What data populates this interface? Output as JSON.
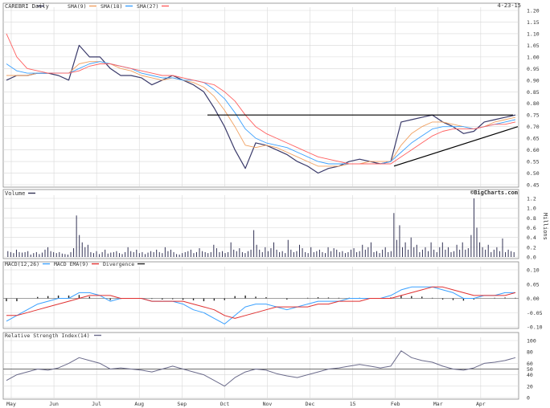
{
  "header": {
    "symbol_label": "CAREBRI Daily",
    "date": "4-23-15",
    "watermark": "©BigCharts.com"
  },
  "colors": {
    "price": "#3a3a6a",
    "sma9": "#f0a060",
    "sma18": "#3aa0ff",
    "sma27": "#ff6060",
    "macd": "#3aa0ff",
    "ema": "#e03030",
    "divergence": "#222222",
    "rsi": "#6a6a8a",
    "volume": "#333355",
    "grid": "#d8d8d8",
    "trendline": "#000000"
  },
  "chart_data": [
    {
      "type": "line",
      "panel": "price",
      "ylim": [
        0.45,
        1.2
      ],
      "yticks": [
        "1.20",
        "1.15",
        "1.10",
        "1.05",
        "1.00",
        "0.95",
        "0.90",
        "0.85",
        "0.80",
        "0.75",
        "0.70",
        "0.65",
        "0.60",
        "0.55",
        "0.50",
        "0.45"
      ],
      "legend": [
        {
          "name": "SMA(9)",
          "color": "#f0a060"
        },
        {
          "name": "SMA(18)",
          "color": "#3aa0ff"
        },
        {
          "name": "SMA(27)",
          "color": "#ff6060"
        }
      ],
      "series": [
        {
          "name": "price",
          "key": "price",
          "values": [
            0.9,
            0.92,
            0.92,
            0.93,
            0.93,
            0.92,
            0.9,
            1.05,
            1.0,
            1.0,
            0.95,
            0.92,
            0.92,
            0.91,
            0.88,
            0.9,
            0.92,
            0.9,
            0.88,
            0.85,
            0.78,
            0.7,
            0.6,
            0.52,
            0.63,
            0.62,
            0.6,
            0.58,
            0.55,
            0.53,
            0.5,
            0.52,
            0.53,
            0.55,
            0.56,
            0.55,
            0.54,
            0.55,
            0.72,
            0.73,
            0.74,
            0.75,
            0.72,
            0.7,
            0.67,
            0.68,
            0.72,
            0.73,
            0.74,
            0.75
          ]
        },
        {
          "name": "SMA(9)",
          "key": "sma9",
          "values": [
            0.92,
            0.92,
            0.92,
            0.93,
            0.93,
            0.93,
            0.93,
            0.97,
            0.98,
            0.98,
            0.97,
            0.95,
            0.94,
            0.92,
            0.91,
            0.9,
            0.91,
            0.9,
            0.89,
            0.87,
            0.83,
            0.77,
            0.7,
            0.62,
            0.61,
            0.62,
            0.61,
            0.59,
            0.57,
            0.55,
            0.53,
            0.53,
            0.53,
            0.54,
            0.54,
            0.55,
            0.55,
            0.55,
            0.62,
            0.67,
            0.7,
            0.72,
            0.72,
            0.71,
            0.7,
            0.69,
            0.7,
            0.72,
            0.73,
            0.74
          ]
        },
        {
          "name": "SMA(18)",
          "key": "sma18",
          "values": [
            0.97,
            0.94,
            0.93,
            0.93,
            0.93,
            0.93,
            0.93,
            0.95,
            0.97,
            0.98,
            0.97,
            0.96,
            0.95,
            0.93,
            0.92,
            0.91,
            0.91,
            0.9,
            0.9,
            0.89,
            0.86,
            0.82,
            0.76,
            0.69,
            0.65,
            0.63,
            0.62,
            0.61,
            0.59,
            0.57,
            0.55,
            0.54,
            0.54,
            0.54,
            0.54,
            0.54,
            0.54,
            0.55,
            0.59,
            0.63,
            0.66,
            0.69,
            0.7,
            0.7,
            0.7,
            0.69,
            0.7,
            0.71,
            0.72,
            0.73
          ]
        },
        {
          "name": "SMA(27)",
          "key": "sma27",
          "values": [
            1.1,
            1.0,
            0.95,
            0.94,
            0.93,
            0.93,
            0.93,
            0.94,
            0.96,
            0.97,
            0.97,
            0.96,
            0.95,
            0.94,
            0.93,
            0.92,
            0.92,
            0.91,
            0.9,
            0.89,
            0.88,
            0.85,
            0.81,
            0.75,
            0.7,
            0.67,
            0.65,
            0.63,
            0.61,
            0.59,
            0.57,
            0.56,
            0.55,
            0.54,
            0.54,
            0.54,
            0.54,
            0.54,
            0.57,
            0.6,
            0.63,
            0.66,
            0.68,
            0.69,
            0.69,
            0.69,
            0.7,
            0.71,
            0.71,
            0.72
          ]
        }
      ],
      "resistance": 0.75,
      "support_from": 0.53,
      "support_to": 0.7
    },
    {
      "type": "bar",
      "panel": "volume",
      "title": "Volume",
      "ylabel": "Millions",
      "ylim": [
        0,
        1.2
      ],
      "yticks": [
        "1.2",
        "1.0",
        "0.8",
        "0.6",
        "0.4",
        "0.2",
        "0.0"
      ],
      "values": [
        0.12,
        0.1,
        0.08,
        0.15,
        0.1,
        0.09,
        0.1,
        0.12,
        0.05,
        0.08,
        0.1,
        0.06,
        0.09,
        0.15,
        0.2,
        0.12,
        0.1,
        0.08,
        0.1,
        0.07,
        0.06,
        0.05,
        0.1,
        0.18,
        0.85,
        0.45,
        0.3,
        0.2,
        0.25,
        0.1,
        0.08,
        0.12,
        0.06,
        0.1,
        0.15,
        0.07,
        0.09,
        0.1,
        0.12,
        0.08,
        0.06,
        0.1,
        0.2,
        0.12,
        0.1,
        0.15,
        0.08,
        0.1,
        0.06,
        0.09,
        0.12,
        0.1,
        0.15,
        0.1,
        0.08,
        0.2,
        0.12,
        0.15,
        0.1,
        0.06,
        0.05,
        0.08,
        0.1,
        0.12,
        0.15,
        0.08,
        0.1,
        0.18,
        0.12,
        0.1,
        0.08,
        0.1,
        0.25,
        0.18,
        0.1,
        0.12,
        0.08,
        0.1,
        0.3,
        0.15,
        0.12,
        0.18,
        0.1,
        0.08,
        0.12,
        0.15,
        0.55,
        0.25,
        0.15,
        0.1,
        0.2,
        0.12,
        0.18,
        0.3,
        0.15,
        0.1,
        0.12,
        0.08,
        0.35,
        0.15,
        0.1,
        0.12,
        0.25,
        0.18,
        0.1,
        0.08,
        0.2,
        0.1,
        0.12,
        0.15,
        0.1,
        0.08,
        0.2,
        0.12,
        0.18,
        0.15,
        0.1,
        0.12,
        0.08,
        0.1,
        0.15,
        0.18,
        0.1,
        0.12,
        0.25,
        0.15,
        0.2,
        0.3,
        0.1,
        0.12,
        0.08,
        0.15,
        0.2,
        0.1,
        0.12,
        0.9,
        0.35,
        0.65,
        0.2,
        0.3,
        0.15,
        0.4,
        0.2,
        0.25,
        0.1,
        0.15,
        0.2,
        0.12,
        0.3,
        0.15,
        0.1,
        0.2,
        0.3,
        0.15,
        0.2,
        0.1,
        0.12,
        0.25,
        0.15,
        0.3,
        0.15,
        0.18,
        0.45,
        1.2,
        0.6,
        0.3,
        0.2,
        0.15,
        0.25,
        0.1,
        0.15,
        0.2,
        0.12,
        0.38,
        0.1,
        0.15,
        0.12,
        0.1
      ]
    },
    {
      "type": "line",
      "panel": "macd",
      "ylim": [
        -0.1,
        0.1
      ],
      "yticks": [
        "0.10",
        "0.05",
        "0.00",
        "-0.05",
        "-0.10"
      ],
      "legend": [
        {
          "name": "MACD(12,26)",
          "color": "#3aa0ff"
        },
        {
          "name": "MACD EMA(9)",
          "color": "#e03030"
        },
        {
          "name": "Divergence",
          "color": "#222222"
        }
      ],
      "series": [
        {
          "name": "MACD(12,26)",
          "key": "macd",
          "values": [
            -0.08,
            -0.06,
            -0.04,
            -0.02,
            -0.01,
            0.0,
            0.0,
            0.02,
            0.02,
            0.01,
            -0.01,
            0.0,
            0.0,
            0.0,
            -0.01,
            -0.01,
            -0.01,
            -0.02,
            -0.04,
            -0.05,
            -0.07,
            -0.09,
            -0.06,
            -0.03,
            -0.02,
            -0.02,
            -0.03,
            -0.04,
            -0.03,
            -0.02,
            -0.01,
            -0.01,
            -0.01,
            0.0,
            0.0,
            0.0,
            0.0,
            0.01,
            0.03,
            0.04,
            0.04,
            0.04,
            0.03,
            0.02,
            0.0,
            0.0,
            0.01,
            0.01,
            0.02,
            0.02
          ]
        },
        {
          "name": "MACD EMA(9)",
          "key": "ema",
          "values": [
            -0.06,
            -0.06,
            -0.05,
            -0.04,
            -0.03,
            -0.02,
            -0.01,
            0.0,
            0.01,
            0.01,
            0.01,
            0.0,
            0.0,
            0.0,
            -0.01,
            -0.01,
            -0.01,
            -0.01,
            -0.02,
            -0.03,
            -0.04,
            -0.06,
            -0.07,
            -0.06,
            -0.05,
            -0.04,
            -0.03,
            -0.03,
            -0.03,
            -0.03,
            -0.02,
            -0.02,
            -0.01,
            -0.01,
            -0.01,
            0.0,
            0.0,
            0.0,
            0.01,
            0.02,
            0.03,
            0.04,
            0.04,
            0.03,
            0.02,
            0.01,
            0.01,
            0.01,
            0.01,
            0.02
          ]
        },
        {
          "name": "Divergence",
          "key": "div",
          "values": [
            -0.01,
            -0.01,
            0.0,
            0.005,
            0.008,
            0.01,
            0.01,
            0.012,
            0.006,
            0.0,
            -0.006,
            -0.002,
            0.0,
            0.0,
            -0.002,
            -0.004,
            -0.003,
            -0.005,
            -0.007,
            -0.01,
            -0.008,
            -0.006,
            0.008,
            0.01,
            0.006,
            0.004,
            0.0,
            -0.004,
            0.0,
            0.002,
            0.004,
            0.003,
            0.002,
            0.002,
            0.002,
            0.0,
            0.0,
            0.003,
            0.01,
            0.008,
            0.006,
            0.002,
            -0.004,
            -0.006,
            -0.008,
            -0.004,
            0.0,
            0.002,
            0.003,
            0.002
          ]
        }
      ]
    },
    {
      "type": "line",
      "panel": "rsi",
      "ylim": [
        0,
        100
      ],
      "yticks": [
        "100",
        "80",
        "60",
        "50",
        "40",
        "20",
        "0"
      ],
      "legend": [
        {
          "name": "Relative Strength Index(14)",
          "color": "#6a6a8a"
        }
      ],
      "series": [
        {
          "name": "RSI",
          "key": "rsi",
          "values": [
            30,
            40,
            45,
            50,
            48,
            52,
            60,
            70,
            65,
            60,
            50,
            52,
            50,
            48,
            45,
            50,
            55,
            50,
            45,
            40,
            30,
            20,
            35,
            45,
            50,
            48,
            42,
            38,
            35,
            40,
            45,
            50,
            52,
            55,
            58,
            55,
            52,
            55,
            82,
            70,
            65,
            62,
            55,
            50,
            48,
            52,
            60,
            62,
            65,
            70
          ]
        }
      ],
      "reference": 50
    }
  ],
  "x_labels": [
    "May",
    "Jun",
    "Jul",
    "Aug",
    "Sep",
    "Oct",
    "Nov",
    "Dec",
    "15",
    "Feb",
    "Mar",
    "Apr"
  ]
}
